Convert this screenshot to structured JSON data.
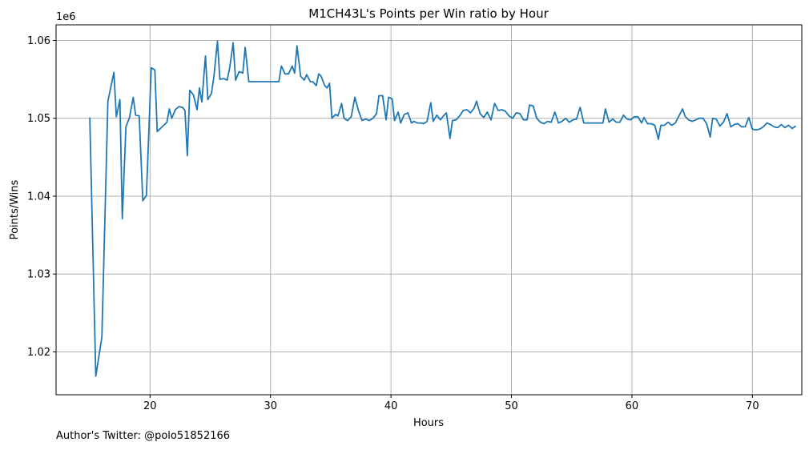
{
  "chart_data": {
    "type": "line",
    "title": "M1CH43L's Points per Win ratio by Hour",
    "xlabel": "Hours",
    "ylabel": "Points/Wins",
    "y_offset_label": "1e6",
    "xlim": [
      12.2,
      74.1
    ],
    "ylim": [
      1014500,
      1062000
    ],
    "x_ticks": [
      20,
      30,
      40,
      50,
      60,
      70
    ],
    "x_tick_labels": [
      "20",
      "30",
      "40",
      "50",
      "60",
      "70"
    ],
    "y_ticks": [
      1020000,
      1030000,
      1040000,
      1050000,
      1060000
    ],
    "y_tick_labels": [
      "1.02",
      "1.03",
      "1.04",
      "1.05",
      "1.06"
    ],
    "grid": true,
    "line_color": "#1f77b4",
    "series": [
      {
        "points": [
          [
            15.0,
            1050100
          ],
          [
            15.5,
            1016900
          ],
          [
            16.0,
            1021900
          ],
          [
            16.5,
            1052200
          ],
          [
            17.0,
            1055900
          ],
          [
            17.2,
            1050200
          ],
          [
            17.5,
            1052400
          ],
          [
            17.7,
            1037100
          ],
          [
            18.0,
            1048900
          ],
          [
            18.3,
            1050100
          ],
          [
            18.6,
            1052700
          ],
          [
            18.8,
            1050400
          ],
          [
            19.1,
            1050300
          ],
          [
            19.4,
            1039400
          ],
          [
            19.7,
            1040100
          ],
          [
            20.1,
            1056500
          ],
          [
            20.4,
            1056200
          ],
          [
            20.6,
            1048300
          ],
          [
            21.0,
            1048900
          ],
          [
            21.4,
            1049500
          ],
          [
            21.6,
            1051200
          ],
          [
            21.8,
            1050000
          ],
          [
            22.1,
            1051100
          ],
          [
            22.4,
            1051500
          ],
          [
            22.7,
            1051400
          ],
          [
            22.9,
            1051000
          ],
          [
            23.1,
            1045200
          ],
          [
            23.3,
            1053600
          ],
          [
            23.6,
            1053000
          ],
          [
            23.9,
            1051100
          ],
          [
            24.1,
            1053900
          ],
          [
            24.3,
            1052100
          ],
          [
            24.6,
            1058000
          ],
          [
            24.8,
            1052400
          ],
          [
            25.1,
            1053200
          ],
          [
            25.3,
            1055300
          ],
          [
            25.6,
            1059900
          ],
          [
            25.8,
            1055000
          ],
          [
            26.1,
            1055100
          ],
          [
            26.4,
            1054900
          ],
          [
            26.6,
            1056400
          ],
          [
            26.9,
            1059700
          ],
          [
            27.1,
            1054900
          ],
          [
            27.4,
            1056000
          ],
          [
            27.7,
            1055800
          ],
          [
            27.9,
            1059100
          ],
          [
            28.2,
            1054700
          ],
          [
            30.7,
            1054700
          ],
          [
            30.9,
            1056700
          ],
          [
            31.2,
            1055700
          ],
          [
            31.5,
            1055700
          ],
          [
            31.8,
            1056700
          ],
          [
            32.0,
            1055800
          ],
          [
            32.2,
            1059300
          ],
          [
            32.5,
            1055400
          ],
          [
            32.8,
            1054900
          ],
          [
            33.0,
            1055600
          ],
          [
            33.3,
            1054700
          ],
          [
            33.5,
            1054700
          ],
          [
            33.8,
            1054200
          ],
          [
            34.0,
            1055700
          ],
          [
            34.2,
            1055400
          ],
          [
            34.5,
            1054200
          ],
          [
            34.7,
            1053900
          ],
          [
            34.9,
            1054500
          ],
          [
            35.1,
            1050000
          ],
          [
            35.4,
            1050500
          ],
          [
            35.6,
            1050300
          ],
          [
            35.9,
            1051900
          ],
          [
            36.1,
            1050000
          ],
          [
            36.4,
            1049700
          ],
          [
            36.7,
            1050200
          ],
          [
            37.0,
            1052700
          ],
          [
            37.3,
            1051000
          ],
          [
            37.6,
            1049700
          ],
          [
            37.9,
            1049900
          ],
          [
            38.2,
            1049700
          ],
          [
            38.5,
            1050000
          ],
          [
            38.8,
            1050600
          ],
          [
            39.0,
            1052900
          ],
          [
            39.3,
            1052900
          ],
          [
            39.6,
            1049800
          ],
          [
            39.8,
            1052700
          ],
          [
            40.1,
            1052500
          ],
          [
            40.3,
            1049700
          ],
          [
            40.6,
            1050800
          ],
          [
            40.8,
            1049400
          ],
          [
            41.1,
            1050500
          ],
          [
            41.4,
            1050700
          ],
          [
            41.7,
            1049400
          ],
          [
            41.9,
            1049600
          ],
          [
            42.2,
            1049400
          ],
          [
            42.5,
            1049400
          ],
          [
            42.7,
            1049300
          ],
          [
            43.0,
            1049600
          ],
          [
            43.3,
            1052000
          ],
          [
            43.5,
            1049600
          ],
          [
            43.8,
            1050400
          ],
          [
            44.1,
            1049800
          ],
          [
            44.3,
            1050200
          ],
          [
            44.6,
            1050700
          ],
          [
            44.9,
            1047400
          ],
          [
            45.1,
            1049700
          ],
          [
            45.4,
            1049800
          ],
          [
            45.7,
            1050300
          ],
          [
            46.0,
            1051000
          ],
          [
            46.3,
            1051100
          ],
          [
            46.6,
            1050700
          ],
          [
            46.9,
            1051300
          ],
          [
            47.1,
            1052200
          ],
          [
            47.4,
            1050600
          ],
          [
            47.7,
            1050100
          ],
          [
            48.0,
            1050800
          ],
          [
            48.3,
            1049800
          ],
          [
            48.6,
            1051900
          ],
          [
            48.9,
            1051000
          ],
          [
            49.2,
            1051100
          ],
          [
            49.5,
            1050900
          ],
          [
            49.8,
            1050300
          ],
          [
            50.1,
            1050000
          ],
          [
            50.4,
            1050700
          ],
          [
            50.7,
            1050600
          ],
          [
            51.0,
            1049800
          ],
          [
            51.3,
            1049800
          ],
          [
            51.5,
            1051700
          ],
          [
            51.8,
            1051600
          ],
          [
            52.1,
            1050000
          ],
          [
            52.4,
            1049500
          ],
          [
            52.7,
            1049300
          ],
          [
            53.0,
            1049600
          ],
          [
            53.3,
            1049500
          ],
          [
            53.6,
            1050800
          ],
          [
            53.9,
            1049400
          ],
          [
            54.2,
            1049600
          ],
          [
            54.5,
            1050000
          ],
          [
            54.8,
            1049500
          ],
          [
            55.1,
            1049800
          ],
          [
            55.4,
            1049900
          ],
          [
            55.7,
            1051400
          ],
          [
            56.0,
            1049400
          ],
          [
            57.6,
            1049400
          ],
          [
            57.8,
            1051200
          ],
          [
            58.1,
            1049500
          ],
          [
            58.4,
            1049900
          ],
          [
            58.7,
            1049500
          ],
          [
            59.0,
            1049500
          ],
          [
            59.3,
            1050400
          ],
          [
            59.6,
            1049900
          ],
          [
            59.9,
            1049800
          ],
          [
            60.2,
            1050200
          ],
          [
            60.5,
            1050200
          ],
          [
            60.8,
            1049400
          ],
          [
            61.0,
            1050100
          ],
          [
            61.3,
            1049300
          ],
          [
            61.6,
            1049300
          ],
          [
            61.9,
            1049100
          ],
          [
            62.2,
            1047300
          ],
          [
            62.4,
            1049100
          ],
          [
            62.7,
            1049100
          ],
          [
            63.0,
            1049500
          ],
          [
            63.3,
            1049100
          ],
          [
            63.6,
            1049400
          ],
          [
            63.9,
            1050300
          ],
          [
            64.2,
            1051200
          ],
          [
            64.4,
            1050300
          ],
          [
            64.7,
            1049800
          ],
          [
            65.0,
            1049600
          ],
          [
            65.3,
            1049800
          ],
          [
            65.6,
            1050000
          ],
          [
            65.9,
            1050000
          ],
          [
            66.2,
            1049300
          ],
          [
            66.5,
            1047600
          ],
          [
            66.7,
            1050000
          ],
          [
            67.0,
            1049900
          ],
          [
            67.3,
            1049000
          ],
          [
            67.6,
            1049500
          ],
          [
            67.9,
            1050600
          ],
          [
            68.2,
            1048900
          ],
          [
            68.5,
            1049200
          ],
          [
            68.8,
            1049300
          ],
          [
            69.1,
            1048900
          ],
          [
            69.4,
            1048900
          ],
          [
            69.7,
            1050100
          ],
          [
            70.0,
            1048600
          ],
          [
            70.3,
            1048500
          ],
          [
            70.6,
            1048600
          ],
          [
            70.9,
            1048900
          ],
          [
            71.2,
            1049400
          ],
          [
            71.5,
            1049200
          ],
          [
            71.8,
            1048900
          ],
          [
            72.1,
            1048800
          ],
          [
            72.4,
            1049200
          ],
          [
            72.7,
            1048800
          ],
          [
            73.0,
            1049100
          ],
          [
            73.3,
            1048700
          ],
          [
            73.6,
            1049000
          ]
        ]
      }
    ]
  },
  "footer": {
    "credit": "Author's Twitter: @polo51852166"
  }
}
